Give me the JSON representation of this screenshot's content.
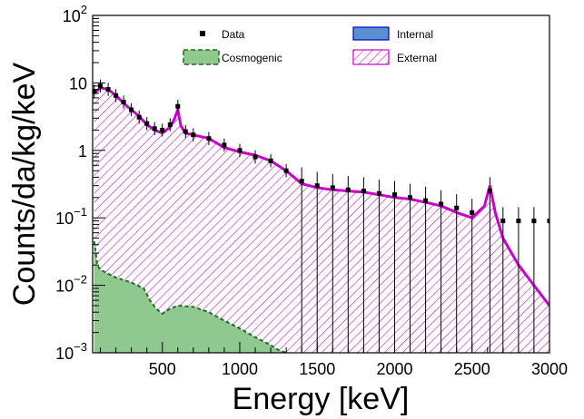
{
  "chart_data": {
    "type": "histogram",
    "xlabel": "Energy [keV]",
    "ylabel": "Counts/da/kg/keV",
    "xlim": [
      50,
      3000
    ],
    "ylim": [
      0.001,
      100
    ],
    "yscale": "log",
    "x_ticks": [
      {
        "value": 500,
        "label": "500"
      },
      {
        "value": 1000,
        "label": "1000"
      },
      {
        "value": 1500,
        "label": "1500"
      },
      {
        "value": 2000,
        "label": "2000"
      },
      {
        "value": 2500,
        "label": "2500"
      },
      {
        "value": 3000,
        "label": "3000"
      }
    ],
    "y_ticks": [
      {
        "value": 0.001,
        "base": "10",
        "exp": "−3"
      },
      {
        "value": 0.01,
        "base": "10",
        "exp": "−2"
      },
      {
        "value": 0.1,
        "base": "10",
        "exp": "−1"
      },
      {
        "value": 1,
        "base": "1",
        "exp": ""
      },
      {
        "value": 10,
        "base": "10",
        "exp": ""
      },
      {
        "value": 100,
        "base": "10",
        "exp": "2"
      }
    ],
    "legend_placement": "top",
    "legend": [
      {
        "label": "Data",
        "style": "marker",
        "color": "#000000"
      },
      {
        "label": "Internal",
        "style": "fill",
        "color": "#5b8fd0",
        "edge": "#0000cc"
      },
      {
        "label": "Cosmogenic",
        "style": "fill-dashed",
        "color": "#8fc98f",
        "edge": "#1f6b1f"
      },
      {
        "label": "External",
        "style": "hatch",
        "color": "#cc00cc"
      }
    ],
    "series": [
      {
        "name": "External",
        "color": "#cc00cc",
        "points": [
          [
            60,
            7.0
          ],
          [
            100,
            8.5
          ],
          [
            150,
            8.0
          ],
          [
            200,
            6.5
          ],
          [
            250,
            5.0
          ],
          [
            300,
            4.0
          ],
          [
            350,
            3.2
          ],
          [
            400,
            2.4
          ],
          [
            450,
            2.0
          ],
          [
            500,
            1.8
          ],
          [
            550,
            2.2
          ],
          [
            580,
            3.0
          ],
          [
            600,
            4.0
          ],
          [
            620,
            2.3
          ],
          [
            650,
            1.8
          ],
          [
            700,
            1.7
          ],
          [
            800,
            1.5
          ],
          [
            900,
            1.1
          ],
          [
            1000,
            0.95
          ],
          [
            1100,
            0.85
          ],
          [
            1200,
            0.7
          ],
          [
            1300,
            0.5
          ],
          [
            1400,
            0.32
          ],
          [
            1500,
            0.28
          ],
          [
            1600,
            0.26
          ],
          [
            1700,
            0.25
          ],
          [
            1800,
            0.24
          ],
          [
            1900,
            0.22
          ],
          [
            2000,
            0.2
          ],
          [
            2100,
            0.19
          ],
          [
            2200,
            0.17
          ],
          [
            2300,
            0.15
          ],
          [
            2400,
            0.12
          ],
          [
            2500,
            0.1
          ],
          [
            2580,
            0.15
          ],
          [
            2615,
            0.3
          ],
          [
            2650,
            0.12
          ],
          [
            2700,
            0.05
          ],
          [
            2800,
            0.02
          ],
          [
            2900,
            0.01
          ],
          [
            3000,
            0.005
          ]
        ]
      },
      {
        "name": "Cosmogenic",
        "color": "#8fc98f",
        "points": [
          [
            60,
            0.045
          ],
          [
            80,
            0.02
          ],
          [
            100,
            0.017
          ],
          [
            200,
            0.013
          ],
          [
            300,
            0.011
          ],
          [
            380,
            0.009
          ],
          [
            420,
            0.006
          ],
          [
            460,
            0.0045
          ],
          [
            500,
            0.0038
          ],
          [
            550,
            0.0045
          ],
          [
            600,
            0.005
          ],
          [
            700,
            0.0048
          ],
          [
            800,
            0.004
          ],
          [
            900,
            0.003
          ],
          [
            1000,
            0.0023
          ],
          [
            1100,
            0.0017
          ],
          [
            1200,
            0.0013
          ],
          [
            1250,
            0.0011
          ],
          [
            1300,
            0.001
          ]
        ]
      },
      {
        "name": "Data",
        "color": "#000000",
        "points": [
          [
            60,
            7.5
          ],
          [
            100,
            9.0
          ],
          [
            150,
            8.0
          ],
          [
            200,
            6.5
          ],
          [
            250,
            5.2
          ],
          [
            300,
            4.0
          ],
          [
            350,
            3.1
          ],
          [
            400,
            2.5
          ],
          [
            450,
            2.1
          ],
          [
            500,
            2.0
          ],
          [
            550,
            2.4
          ],
          [
            600,
            4.5
          ],
          [
            650,
            1.9
          ],
          [
            700,
            1.7
          ],
          [
            800,
            1.5
          ],
          [
            900,
            1.2
          ],
          [
            1000,
            1.0
          ],
          [
            1100,
            0.8
          ],
          [
            1200,
            0.7
          ],
          [
            1300,
            0.5
          ],
          [
            1400,
            0.35
          ],
          [
            1500,
            0.3
          ],
          [
            1600,
            0.28
          ],
          [
            1700,
            0.26
          ],
          [
            1800,
            0.25
          ],
          [
            1900,
            0.23
          ],
          [
            2000,
            0.22
          ],
          [
            2100,
            0.2
          ],
          [
            2200,
            0.18
          ],
          [
            2300,
            0.16
          ],
          [
            2400,
            0.14
          ],
          [
            2500,
            0.12
          ],
          [
            2615,
            0.25
          ],
          [
            2700,
            0.09
          ],
          [
            2800,
            0.09
          ],
          [
            2900,
            0.09
          ],
          [
            3000,
            0.09
          ]
        ]
      }
    ]
  }
}
